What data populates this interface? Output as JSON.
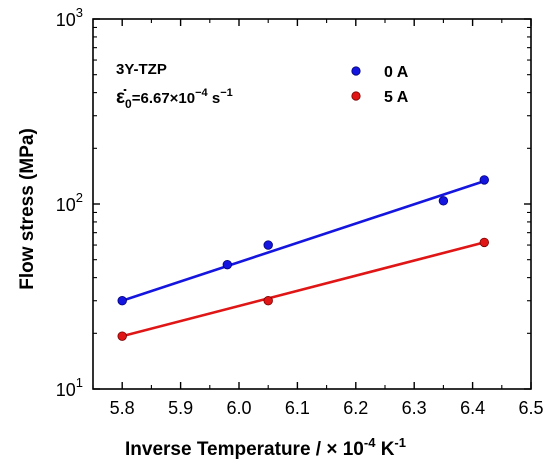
{
  "chart_data": {
    "type": "scatter",
    "xlabel": "Inverse Temperature / × 10",
    "xlabel_exp": "-4",
    "xlabel_tail": " K",
    "xlabel_tail_exp": "-1",
    "ylabel": "Flow stress (MPa)",
    "xlim": [
      5.75,
      6.5
    ],
    "ylim": [
      10,
      1000
    ],
    "yscale": "log",
    "grid": false,
    "x_ticks": [
      5.8,
      5.9,
      6.0,
      6.1,
      6.2,
      6.3,
      6.4,
      6.5
    ],
    "x_tick_labels": [
      "5.8",
      "5.9",
      "6.0",
      "6.1",
      "6.2",
      "6.3",
      "6.4",
      "6.5"
    ],
    "y_ticks": [
      {
        "value": 10,
        "base": "10",
        "exp": "1"
      },
      {
        "value": 100,
        "base": "10",
        "exp": "2"
      },
      {
        "value": 1000,
        "base": "10",
        "exp": "3"
      }
    ],
    "annotation": {
      "material": "3Y-TZP",
      "rate_symbol": "ε̇",
      "rate_sub": "0",
      "rate_value": "=6.67×10",
      "rate_exp": "−4",
      "rate_unit": " s",
      "rate_unit_exp": "−1"
    },
    "legend_position": "top-right",
    "series": [
      {
        "name": "0 A",
        "color": "#1515e0",
        "points": [
          {
            "x": 5.8,
            "y": 30
          },
          {
            "x": 5.98,
            "y": 47
          },
          {
            "x": 6.05,
            "y": 60
          },
          {
            "x": 6.35,
            "y": 104
          },
          {
            "x": 6.42,
            "y": 135
          }
        ],
        "fit": {
          "x": [
            5.8,
            6.42
          ],
          "y": [
            30,
            133
          ]
        }
      },
      {
        "name": "5 A",
        "color": "#e01515",
        "points": [
          {
            "x": 5.8,
            "y": 19.3
          },
          {
            "x": 6.05,
            "y": 30
          },
          {
            "x": 6.42,
            "y": 62
          }
        ],
        "fit": {
          "x": [
            5.8,
            6.42
          ],
          "y": [
            19.3,
            62
          ]
        }
      }
    ]
  }
}
